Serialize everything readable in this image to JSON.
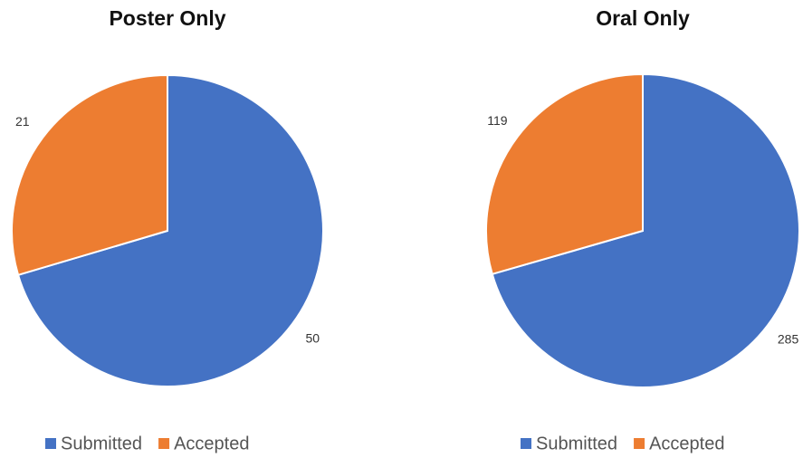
{
  "chart_data": [
    {
      "type": "pie",
      "title": "Poster Only",
      "categories": [
        "Submitted",
        "Accepted"
      ],
      "values": [
        50,
        21
      ],
      "colors": [
        "#4472c4",
        "#ed7d31"
      ]
    },
    {
      "type": "pie",
      "title": "Oral Only",
      "categories": [
        "Submitted",
        "Accepted"
      ],
      "values": [
        285,
        119
      ],
      "colors": [
        "#4472c4",
        "#ed7d31"
      ]
    }
  ]
}
